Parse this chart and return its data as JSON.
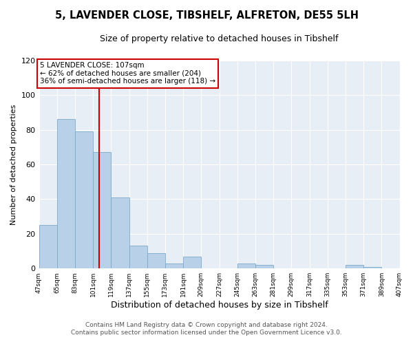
{
  "title": "5, LAVENDER CLOSE, TIBSHELF, ALFRETON, DE55 5LH",
  "subtitle": "Size of property relative to detached houses in Tibshelf",
  "xlabel": "Distribution of detached houses by size in Tibshelf",
  "ylabel": "Number of detached properties",
  "bar_values": [
    25,
    86,
    79,
    67,
    41,
    13,
    9,
    3,
    7,
    0,
    0,
    3,
    2,
    0,
    0,
    0,
    0,
    2,
    1,
    0
  ],
  "bin_edges": [
    47,
    65,
    83,
    101,
    119,
    137,
    155,
    173,
    191,
    209,
    227,
    245,
    263,
    281,
    299,
    317,
    335,
    353,
    371,
    389,
    407
  ],
  "tick_labels": [
    "47sqm",
    "65sqm",
    "83sqm",
    "101sqm",
    "119sqm",
    "137sqm",
    "155sqm",
    "173sqm",
    "191sqm",
    "209sqm",
    "227sqm",
    "245sqm",
    "263sqm",
    "281sqm",
    "299sqm",
    "317sqm",
    "335sqm",
    "353sqm",
    "371sqm",
    "389sqm",
    "407sqm"
  ],
  "bar_color": "#b8d0e8",
  "bar_edge_color": "#7aaacb",
  "vline_x": 107,
  "vline_color": "#cc0000",
  "box_text_line1": "5 LAVENDER CLOSE: 107sqm",
  "box_text_line2": "← 62% of detached houses are smaller (204)",
  "box_text_line3": "36% of semi-detached houses are larger (118) →",
  "box_color": "#cc0000",
  "box_bg": "#ffffff",
  "ylim": [
    0,
    120
  ],
  "yticks": [
    0,
    20,
    40,
    60,
    80,
    100,
    120
  ],
  "footer_line1": "Contains HM Land Registry data © Crown copyright and database right 2024.",
  "footer_line2": "Contains public sector information licensed under the Open Government Licence v3.0.",
  "bg_color": "#ffffff",
  "plot_bg_color": "#e8eef5"
}
